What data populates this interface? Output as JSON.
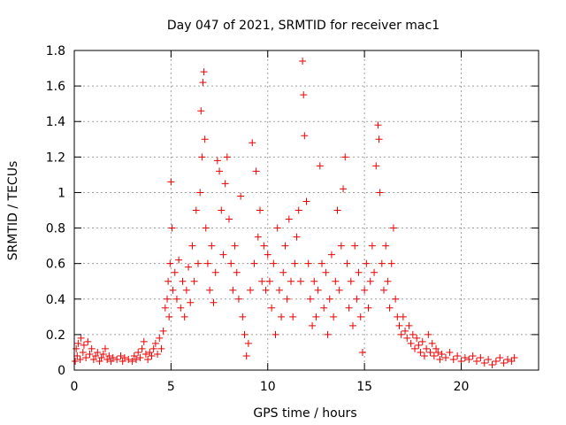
{
  "chart_data": {
    "type": "scatter",
    "title": "Day 047 of 2021, SRMTID for receiver mac1",
    "xlabel": "GPS time / hours",
    "ylabel": "SRMTID / TECUs",
    "xlim": [
      0,
      24
    ],
    "ylim": [
      0,
      1.8
    ],
    "xticks": [
      0,
      5,
      10,
      15,
      20
    ],
    "xtick_labels": [
      "0",
      "5",
      "10",
      "15",
      "20"
    ],
    "yticks": [
      0,
      0.2,
      0.4,
      0.6,
      0.8,
      1.0,
      1.2,
      1.4,
      1.6,
      1.8
    ],
    "ytick_labels": [
      "0",
      "0.2",
      "0.4",
      "0.6",
      "0.8",
      "1",
      "1.2",
      "1.4",
      "1.6",
      "1.8"
    ],
    "grid": true,
    "marker": "+",
    "marker_color": "#ee0000",
    "series": [
      {
        "name": "mac1",
        "points": [
          [
            0.05,
            0.05
          ],
          [
            0.1,
            0.12
          ],
          [
            0.15,
            0.08
          ],
          [
            0.2,
            0.15
          ],
          [
            0.3,
            0.06
          ],
          [
            0.35,
            0.18
          ],
          [
            0.45,
            0.1
          ],
          [
            0.5,
            0.14
          ],
          [
            0.6,
            0.07
          ],
          [
            0.7,
            0.16
          ],
          [
            0.8,
            0.09
          ],
          [
            0.9,
            0.12
          ],
          [
            1.0,
            0.06
          ],
          [
            1.1,
            0.08
          ],
          [
            1.2,
            0.1
          ],
          [
            1.3,
            0.05
          ],
          [
            1.4,
            0.07
          ],
          [
            1.5,
            0.09
          ],
          [
            1.6,
            0.12
          ],
          [
            1.7,
            0.06
          ],
          [
            1.8,
            0.08
          ],
          [
            1.9,
            0.05
          ],
          [
            2.0,
            0.07
          ],
          [
            2.2,
            0.06
          ],
          [
            2.4,
            0.08
          ],
          [
            2.5,
            0.05
          ],
          [
            2.6,
            0.07
          ],
          [
            2.8,
            0.06
          ],
          [
            3.0,
            0.05
          ],
          [
            3.1,
            0.08
          ],
          [
            3.2,
            0.06
          ],
          [
            3.3,
            0.1
          ],
          [
            3.4,
            0.07
          ],
          [
            3.5,
            0.12
          ],
          [
            3.6,
            0.16
          ],
          [
            3.7,
            0.09
          ],
          [
            3.8,
            0.06
          ],
          [
            3.9,
            0.1
          ],
          [
            4.0,
            0.08
          ],
          [
            4.1,
            0.12
          ],
          [
            4.2,
            0.15
          ],
          [
            4.3,
            0.09
          ],
          [
            4.4,
            0.18
          ],
          [
            4.5,
            0.12
          ],
          [
            4.6,
            0.22
          ],
          [
            4.7,
            0.35
          ],
          [
            4.8,
            0.4
          ],
          [
            4.85,
            0.5
          ],
          [
            4.9,
            0.3
          ],
          [
            4.95,
            0.6
          ],
          [
            5.0,
            1.06
          ],
          [
            5.05,
            0.8
          ],
          [
            5.1,
            0.45
          ],
          [
            5.2,
            0.55
          ],
          [
            5.3,
            0.4
          ],
          [
            5.4,
            0.62
          ],
          [
            5.5,
            0.35
          ],
          [
            5.6,
            0.5
          ],
          [
            5.7,
            0.3
          ],
          [
            5.8,
            0.45
          ],
          [
            5.9,
            0.58
          ],
          [
            6.0,
            0.38
          ],
          [
            6.1,
            0.7
          ],
          [
            6.2,
            0.5
          ],
          [
            6.3,
            0.9
          ],
          [
            6.4,
            0.6
          ],
          [
            6.5,
            1.0
          ],
          [
            6.55,
            1.46
          ],
          [
            6.6,
            1.2
          ],
          [
            6.65,
            1.62
          ],
          [
            6.7,
            1.68
          ],
          [
            6.75,
            1.3
          ],
          [
            6.8,
            0.8
          ],
          [
            6.9,
            0.6
          ],
          [
            7.0,
            0.45
          ],
          [
            7.1,
            0.7
          ],
          [
            7.2,
            0.38
          ],
          [
            7.3,
            0.55
          ],
          [
            7.4,
            1.18
          ],
          [
            7.5,
            1.12
          ],
          [
            7.6,
            0.9
          ],
          [
            7.7,
            0.65
          ],
          [
            7.8,
            1.05
          ],
          [
            7.9,
            1.2
          ],
          [
            8.0,
            0.85
          ],
          [
            8.1,
            0.6
          ],
          [
            8.2,
            0.45
          ],
          [
            8.3,
            0.7
          ],
          [
            8.4,
            0.55
          ],
          [
            8.5,
            0.4
          ],
          [
            8.6,
            0.98
          ],
          [
            8.7,
            0.3
          ],
          [
            8.8,
            0.2
          ],
          [
            8.9,
            0.08
          ],
          [
            9.0,
            0.15
          ],
          [
            9.1,
            0.45
          ],
          [
            9.2,
            1.28
          ],
          [
            9.3,
            0.6
          ],
          [
            9.4,
            1.12
          ],
          [
            9.5,
            0.75
          ],
          [
            9.6,
            0.9
          ],
          [
            9.7,
            0.5
          ],
          [
            9.8,
            0.7
          ],
          [
            9.9,
            0.45
          ],
          [
            10.0,
            0.65
          ],
          [
            10.1,
            0.5
          ],
          [
            10.2,
            0.35
          ],
          [
            10.3,
            0.6
          ],
          [
            10.4,
            0.2
          ],
          [
            10.5,
            0.8
          ],
          [
            10.6,
            0.45
          ],
          [
            10.7,
            0.3
          ],
          [
            10.8,
            0.55
          ],
          [
            10.9,
            0.7
          ],
          [
            11.0,
            0.4
          ],
          [
            11.1,
            0.85
          ],
          [
            11.2,
            0.5
          ],
          [
            11.3,
            0.3
          ],
          [
            11.4,
            0.6
          ],
          [
            11.5,
            0.75
          ],
          [
            11.6,
            0.9
          ],
          [
            11.7,
            0.5
          ],
          [
            11.8,
            1.74
          ],
          [
            11.85,
            1.55
          ],
          [
            11.9,
            1.32
          ],
          [
            12.0,
            0.95
          ],
          [
            12.1,
            0.6
          ],
          [
            12.2,
            0.4
          ],
          [
            12.3,
            0.25
          ],
          [
            12.4,
            0.5
          ],
          [
            12.5,
            0.3
          ],
          [
            12.6,
            0.45
          ],
          [
            12.7,
            1.15
          ],
          [
            12.8,
            0.6
          ],
          [
            12.9,
            0.35
          ],
          [
            13.0,
            0.55
          ],
          [
            13.1,
            0.2
          ],
          [
            13.2,
            0.4
          ],
          [
            13.3,
            0.65
          ],
          [
            13.4,
            0.3
          ],
          [
            13.5,
            0.5
          ],
          [
            13.6,
            0.9
          ],
          [
            13.7,
            0.45
          ],
          [
            13.8,
            0.7
          ],
          [
            13.9,
            1.02
          ],
          [
            14.0,
            1.2
          ],
          [
            14.1,
            0.6
          ],
          [
            14.2,
            0.35
          ],
          [
            14.3,
            0.5
          ],
          [
            14.4,
            0.25
          ],
          [
            14.5,
            0.7
          ],
          [
            14.6,
            0.4
          ],
          [
            14.7,
            0.55
          ],
          [
            14.8,
            0.3
          ],
          [
            14.9,
            0.1
          ],
          [
            15.0,
            0.45
          ],
          [
            15.1,
            0.6
          ],
          [
            15.2,
            0.35
          ],
          [
            15.3,
            0.5
          ],
          [
            15.4,
            0.7
          ],
          [
            15.5,
            0.55
          ],
          [
            15.6,
            1.15
          ],
          [
            15.7,
            1.38
          ],
          [
            15.75,
            1.3
          ],
          [
            15.8,
            1.0
          ],
          [
            15.9,
            0.6
          ],
          [
            16.0,
            0.45
          ],
          [
            16.1,
            0.7
          ],
          [
            16.2,
            0.5
          ],
          [
            16.3,
            0.35
          ],
          [
            16.4,
            0.6
          ],
          [
            16.5,
            0.8
          ],
          [
            16.6,
            0.4
          ],
          [
            16.7,
            0.3
          ],
          [
            16.8,
            0.25
          ],
          [
            16.9,
            0.2
          ],
          [
            17.0,
            0.3
          ],
          [
            17.1,
            0.22
          ],
          [
            17.2,
            0.18
          ],
          [
            17.3,
            0.25
          ],
          [
            17.4,
            0.15
          ],
          [
            17.5,
            0.2
          ],
          [
            17.6,
            0.12
          ],
          [
            17.7,
            0.18
          ],
          [
            17.8,
            0.14
          ],
          [
            17.9,
            0.1
          ],
          [
            18.0,
            0.16
          ],
          [
            18.1,
            0.08
          ],
          [
            18.2,
            0.12
          ],
          [
            18.3,
            0.2
          ],
          [
            18.4,
            0.1
          ],
          [
            18.5,
            0.15
          ],
          [
            18.6,
            0.08
          ],
          [
            18.7,
            0.12
          ],
          [
            18.8,
            0.1
          ],
          [
            18.9,
            0.06
          ],
          [
            19.0,
            0.09
          ],
          [
            19.2,
            0.07
          ],
          [
            19.4,
            0.1
          ],
          [
            19.6,
            0.06
          ],
          [
            19.8,
            0.08
          ],
          [
            20.0,
            0.05
          ],
          [
            20.2,
            0.07
          ],
          [
            20.4,
            0.06
          ],
          [
            20.6,
            0.08
          ],
          [
            20.8,
            0.05
          ],
          [
            21.0,
            0.07
          ],
          [
            21.2,
            0.04
          ],
          [
            21.4,
            0.06
          ],
          [
            21.6,
            0.03
          ],
          [
            21.8,
            0.05
          ],
          [
            22.0,
            0.07
          ],
          [
            22.2,
            0.04
          ],
          [
            22.4,
            0.06
          ],
          [
            22.6,
            0.05
          ],
          [
            22.75,
            0.07
          ]
        ]
      }
    ]
  }
}
